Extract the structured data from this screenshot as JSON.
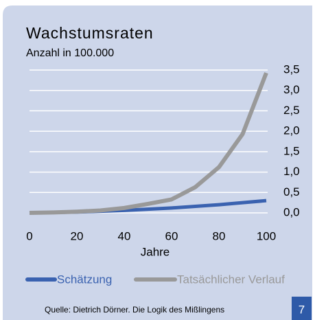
{
  "chart_data": {
    "type": "line",
    "title": "Wachstumsraten",
    "subtitle": "Anzahl in 100.000",
    "x_label": "Jahre",
    "x": [
      0,
      10,
      20,
      30,
      40,
      50,
      60,
      70,
      80,
      90,
      100
    ],
    "series": [
      {
        "name": "Schätzung",
        "color": "#3a62b0",
        "values": [
          0,
          0.01,
          0.02,
          0.04,
          0.06,
          0.09,
          0.12,
          0.16,
          0.2,
          0.25,
          0.3
        ]
      },
      {
        "name": "Tatsächlicher Verlauf",
        "color": "#999999",
        "values": [
          0,
          0.01,
          0.03,
          0.06,
          0.12,
          0.22,
          0.33,
          0.63,
          1.12,
          1.93,
          3.43
        ]
      }
    ],
    "xlim": [
      0,
      100
    ],
    "xticks": [
      0,
      20,
      40,
      60,
      80,
      100
    ],
    "ylim": [
      0,
      3.5
    ],
    "yticks": [
      {
        "value": 0,
        "label": "0,0"
      },
      {
        "value": 0.5,
        "label": "0,5"
      },
      {
        "value": 1,
        "label": "1,0"
      },
      {
        "value": 1.5,
        "label": "1,5"
      },
      {
        "value": 2,
        "label": "2,0"
      },
      {
        "value": 2.5,
        "label": "2,5"
      },
      {
        "value": 3,
        "label": "3,0"
      },
      {
        "value": 3.5,
        "label": "3,5"
      }
    ],
    "grid": true,
    "legend": "bottom"
  },
  "source": "Quelle: Dietrich Dörner. Die Logik des Mißlingens",
  "page_number": "7"
}
